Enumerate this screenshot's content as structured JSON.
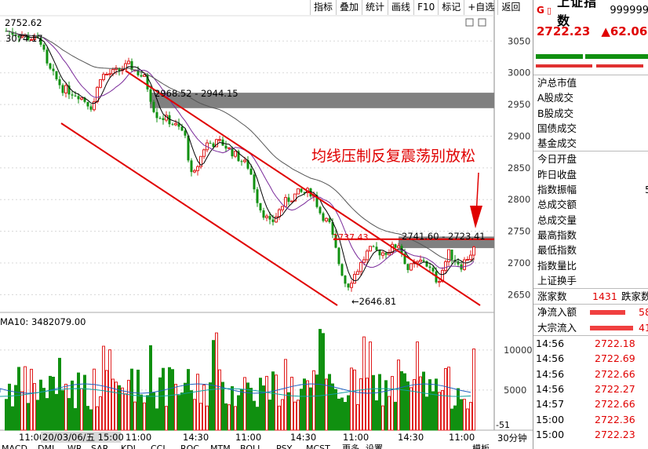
{
  "toolbar": {
    "items": [
      "指标",
      "叠加",
      "统计",
      "画线",
      "F10",
      "标记",
      "+自选",
      "返回"
    ]
  },
  "header": {
    "price_label": "2752.62"
  },
  "chart_data": {
    "type": "candlestick",
    "y_axis_ticks": [
      3050,
      3000,
      2950,
      2900,
      2850,
      2800,
      2750,
      2700,
      2650
    ],
    "ylim": [
      2622,
      3090
    ],
    "volume_ticks": [
      10000,
      5000
    ],
    "volume_label": "MA10: 3482079.00",
    "x_axis_labels": [
      "11:00",
      "20/03/06/五 15:00",
      "11:00",
      "14:30",
      "11:00",
      "14:30",
      "11:00",
      "14:30",
      "11:00"
    ],
    "annotations": {
      "high_mark": "3074.17",
      "low_mark": "2646.81",
      "zone_upper": "2968.52 - 2944.15",
      "zone_lower": "2741.60 - 2723.41",
      "level_line": "2737.43",
      "note": "均线压制反复震荡别放松"
    },
    "zones": [
      {
        "from": 2944.15,
        "to": 2968.52
      },
      {
        "from": 2723.41,
        "to": 2741.6
      }
    ],
    "level": 2737.43,
    "indicator_value": "-51",
    "period": "30分钟",
    "bottom_tabs": [
      "MACD",
      "DMI",
      "WR",
      "SAR",
      "KDJ",
      "CCI",
      "ROC",
      "MTM",
      "BOLL",
      "PSY",
      "MCST",
      "更多",
      "设置"
    ],
    "bottom_right_tab": "模板",
    "colors": {
      "up": "#e02020",
      "down": "#109010",
      "zone": "#808080",
      "line": "#e00000"
    }
  },
  "panel": {
    "g_label": "G",
    "name": "上证指数",
    "code": "999999",
    "price": "2722.23",
    "change": "▲62.06",
    "rows": [
      "沪总市值",
      "A股成交",
      "B股成交",
      "国债成交",
      "基金成交",
      "今日开盘",
      "昨日收盘",
      "指数振幅",
      "总成交额",
      "总成交量",
      "最高指数",
      "最低指数",
      "指数量比",
      "上证换手"
    ],
    "amp_value": "5",
    "rise_label": "涨家数",
    "rise_count": "1431",
    "fall_label": "跌家数",
    "inflow_label": "净流入额",
    "inflow_value": "58",
    "block_label": "大宗流入",
    "block_value": "41",
    "ticks": [
      {
        "time": "14:56",
        "price": "2722.18"
      },
      {
        "time": "14:56",
        "price": "2722.69"
      },
      {
        "time": "14:56",
        "price": "2722.66"
      },
      {
        "time": "14:56",
        "price": "2722.27"
      },
      {
        "time": "14:57",
        "price": "2722.66"
      },
      {
        "time": "15:00",
        "price": "2722.36"
      },
      {
        "time": "15:00",
        "price": "2722.23"
      }
    ]
  }
}
